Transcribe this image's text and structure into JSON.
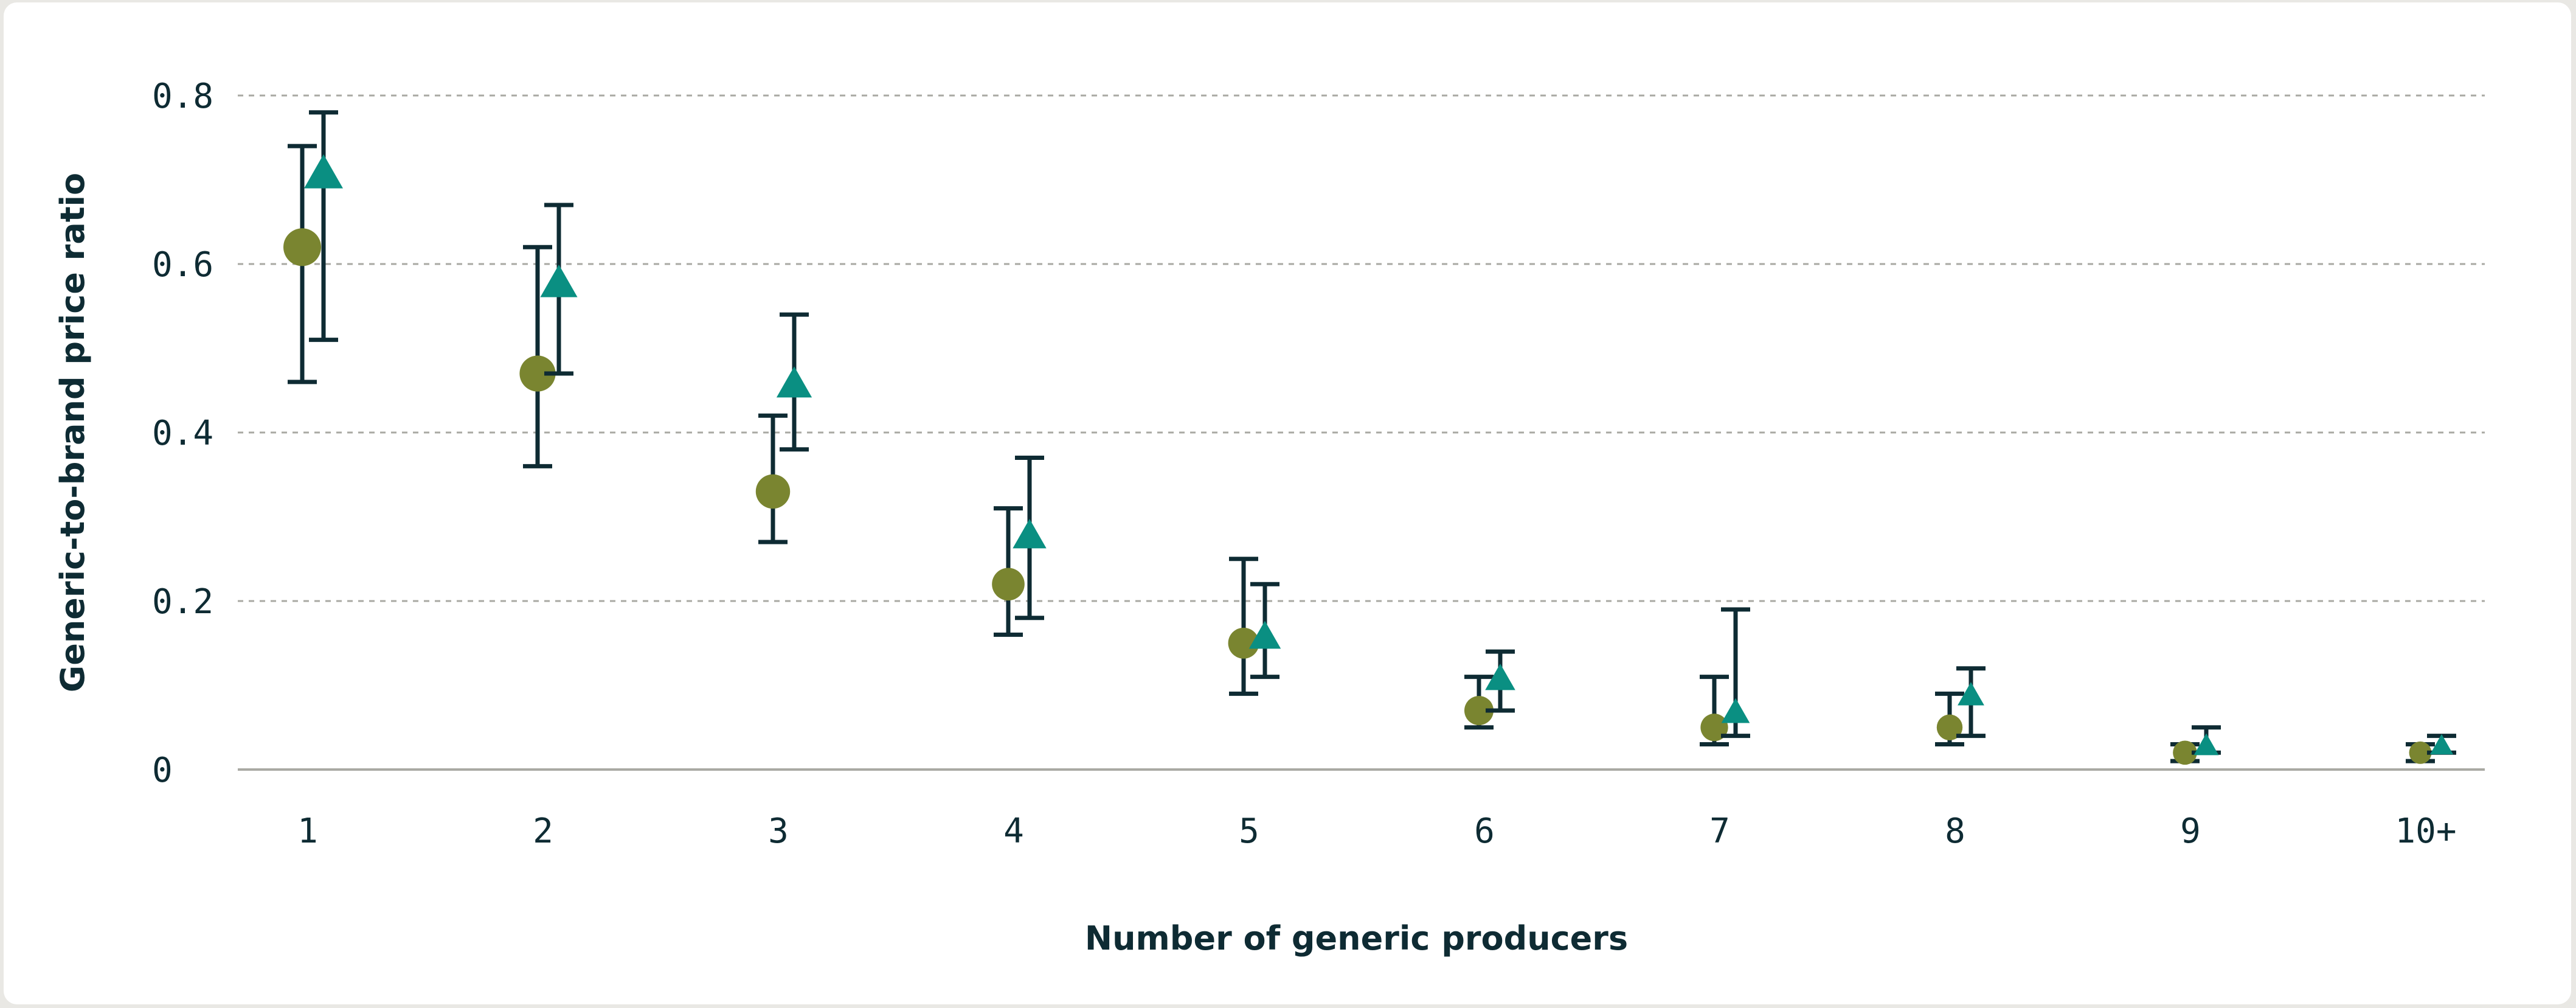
{
  "chart_data": {
    "type": "scatter",
    "xlabel": "Number of generic producers",
    "ylabel": "Generic-to-brand price ratio",
    "categories": [
      "1",
      "2",
      "3",
      "4",
      "5",
      "6",
      "7",
      "8",
      "9",
      "10+"
    ],
    "ylim": [
      0,
      0.8
    ],
    "yticks": [
      {
        "value": 0,
        "label": "0"
      },
      {
        "value": 0.2,
        "label": "0.2"
      },
      {
        "value": 0.4,
        "label": "0.4"
      },
      {
        "value": 0.6,
        "label": "0.6"
      },
      {
        "value": 0.8,
        "label": "0.8"
      }
    ],
    "grid": true,
    "legend": "none",
    "series": [
      {
        "marker": "circle",
        "color": "#7a8530",
        "values": [
          0.62,
          0.47,
          0.33,
          0.22,
          0.15,
          0.07,
          0.05,
          0.05,
          0.02,
          0.02
        ],
        "lower": [
          0.46,
          0.36,
          0.27,
          0.16,
          0.09,
          0.05,
          0.03,
          0.03,
          0.01,
          0.01
        ],
        "upper": [
          0.74,
          0.62,
          0.42,
          0.31,
          0.25,
          0.11,
          0.11,
          0.09,
          0.03,
          0.03
        ]
      },
      {
        "marker": "triangle",
        "color": "#0a8f82",
        "values": [
          0.71,
          0.58,
          0.46,
          0.28,
          0.16,
          0.11,
          0.07,
          0.09,
          0.03,
          0.03
        ],
        "lower": [
          0.51,
          0.47,
          0.38,
          0.18,
          0.11,
          0.07,
          0.04,
          0.04,
          0.02,
          0.02
        ],
        "upper": [
          0.78,
          0.67,
          0.54,
          0.37,
          0.22,
          0.14,
          0.19,
          0.12,
          0.05,
          0.04
        ]
      }
    ],
    "errorbar_color": "#0e2b33",
    "axis_color": "#a9a9a3",
    "grid_color": "#a9a9a3"
  }
}
